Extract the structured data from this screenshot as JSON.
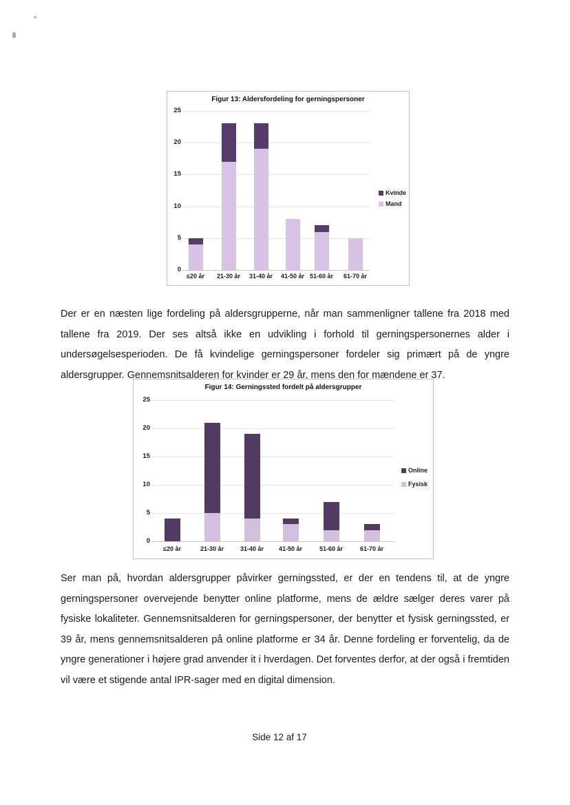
{
  "page": {
    "footer": "Side 12 af 17"
  },
  "paragraphs": [
    "Der er en næsten lige fordeling på aldersgrupperne, når man sammenligner tallene fra 2018 med tallene fra 2019. Der ses altså ikke en udvikling i forhold til gerningspersonernes alder i undersøgelsesperioden. De få kvindelige gerningspersoner fordeler sig primært på de yngre aldersgrupper. Gennemsnitsalderen for kvinder er 29 år, mens den for mændene er 37.",
    "Ser man på, hvordan aldersgrupper påvirker gerningssted, er der en tendens til, at de yngre gerningspersoner overvejende benytter online platforme, mens de ældre sælger deres varer på fysiske lokaliteter. Gennemsnitsalderen for gerningspersoner, der benytter et fysisk gerningssted, er 39 år, mens gennemsnitsalderen på online platforme er 34 år. Denne fordeling er forventelig, da de yngre generationer i højere grad anvender it i hverdagen. Det forventes derfor, at der også i fremtiden vil være et stigende antal IPR-sager med en digital dimension."
  ],
  "chart_data": [
    {
      "type": "bar",
      "stacked": true,
      "title": "Figur 13: Aldersfordeling for gerningspersoner",
      "categories": [
        "≤20 år",
        "21-30 år",
        "31-40 år",
        "41-50 år",
        "51-60 år",
        "61-70 år"
      ],
      "series": [
        {
          "name": "Mand",
          "color": "#d8c3e7",
          "values": [
            4,
            17,
            19,
            8,
            6,
            5
          ]
        },
        {
          "name": "Kvinde",
          "color": "#553c6b",
          "values": [
            1,
            6,
            4,
            0,
            1,
            0
          ]
        }
      ],
      "xlabel": "",
      "ylabel": "",
      "ylim": [
        0,
        25
      ],
      "yticks": [
        0,
        5,
        10,
        15,
        20,
        25
      ],
      "grid": true,
      "legend_position": "right",
      "legend_order": [
        "Kvinde",
        "Mand"
      ]
    },
    {
      "type": "bar",
      "stacked": true,
      "title": "Figur 14: Gerningssted fordelt på aldersgrupper",
      "categories": [
        "≤20 år",
        "21-30 år",
        "31-40 år",
        "41-50 år",
        "51-60 år",
        "61-70 år"
      ],
      "series": [
        {
          "name": "Fysisk",
          "color": "#d5bfe1",
          "values": [
            0,
            5,
            4,
            3,
            2,
            2
          ]
        },
        {
          "name": "Online",
          "color": "#533a63",
          "values": [
            4,
            16,
            15,
            1,
            5,
            1
          ]
        }
      ],
      "xlabel": "",
      "ylabel": "",
      "ylim": [
        0,
        25
      ],
      "yticks": [
        0,
        5,
        10,
        15,
        20,
        25
      ],
      "grid": true,
      "legend_position": "right",
      "legend_order": [
        "Online",
        "Fysisk"
      ]
    }
  ]
}
